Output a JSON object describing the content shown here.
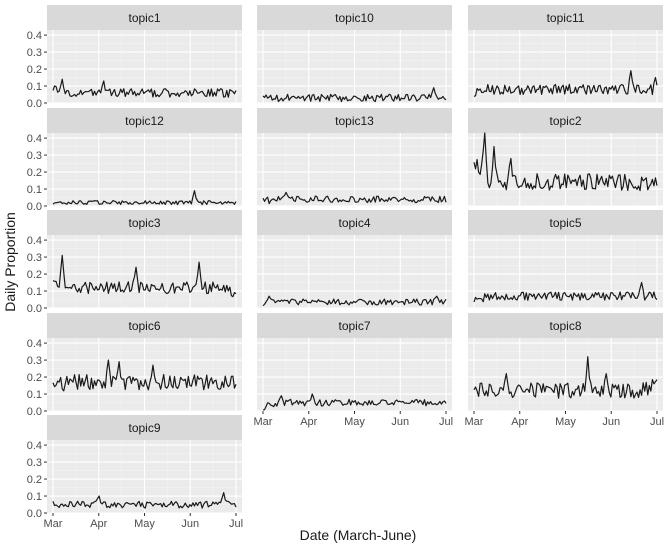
{
  "chart_data": {
    "type": "line",
    "facet": "wrap",
    "xlabel": "Date (March-June)",
    "ylabel": "Daily Proportion",
    "x_ticks": [
      "Mar",
      "Apr",
      "May",
      "Jun",
      "Jul"
    ],
    "y_ticks": [
      "0.0",
      "0.1",
      "0.2",
      "0.3",
      "0.4"
    ],
    "x_range": [
      "2020-03-01",
      "2020-07-01"
    ],
    "ylim": [
      0,
      0.43
    ],
    "grid": true,
    "background": "#ebebeb",
    "strip_color": "#d9d9d9",
    "line_color": "#1a1a1a",
    "panels": [
      {
        "name": "topic1",
        "y_start": 0.08,
        "y_end": 0.05,
        "mean": 0.06,
        "noise": 0.025,
        "peaks": [
          {
            "t": 0.05,
            "y": 0.14
          },
          {
            "t": 0.28,
            "y": 0.13
          }
        ]
      },
      {
        "name": "topic10",
        "y_start": 0.03,
        "y_end": 0.03,
        "mean": 0.03,
        "noise": 0.022,
        "peaks": [
          {
            "t": 0.93,
            "y": 0.09
          }
        ]
      },
      {
        "name": "topic11",
        "y_start": 0.06,
        "y_end": 0.08,
        "mean": 0.08,
        "noise": 0.03,
        "peaks": [
          {
            "t": 0.86,
            "y": 0.19
          },
          {
            "t": 0.99,
            "y": 0.15
          }
        ]
      },
      {
        "name": "topic12",
        "y_start": 0.01,
        "y_end": 0.02,
        "mean": 0.02,
        "noise": 0.012,
        "peaks": [
          {
            "t": 0.77,
            "y": 0.09
          }
        ]
      },
      {
        "name": "topic13",
        "y_start": 0.03,
        "y_end": 0.04,
        "mean": 0.04,
        "noise": 0.02,
        "peaks": [
          {
            "t": 0.13,
            "y": 0.08
          }
        ]
      },
      {
        "name": "topic2",
        "y_start": 0.28,
        "y_end": 0.14,
        "mean": 0.14,
        "noise": 0.05,
        "peaks": [
          {
            "t": 0.06,
            "y": 0.44
          },
          {
            "t": 0.11,
            "y": 0.35
          },
          {
            "t": 0.2,
            "y": 0.28
          }
        ]
      },
      {
        "name": "topic3",
        "y_start": 0.15,
        "y_end": 0.08,
        "mean": 0.12,
        "noise": 0.035,
        "peaks": [
          {
            "t": 0.05,
            "y": 0.31
          },
          {
            "t": 0.45,
            "y": 0.24
          },
          {
            "t": 0.8,
            "y": 0.27
          }
        ]
      },
      {
        "name": "topic4",
        "y_start": 0.03,
        "y_end": 0.04,
        "mean": 0.035,
        "noise": 0.018,
        "peaks": [
          {
            "t": 0.03,
            "y": 0.07
          },
          {
            "t": 0.95,
            "y": 0.07
          }
        ]
      },
      {
        "name": "topic5",
        "y_start": 0.04,
        "y_end": 0.07,
        "mean": 0.07,
        "noise": 0.025,
        "peaks": [
          {
            "t": 0.92,
            "y": 0.15
          }
        ]
      },
      {
        "name": "topic6",
        "y_start": 0.14,
        "y_end": 0.17,
        "mean": 0.17,
        "noise": 0.045,
        "peaks": [
          {
            "t": 0.3,
            "y": 0.3
          },
          {
            "t": 0.36,
            "y": 0.29
          },
          {
            "t": 0.55,
            "y": 0.27
          }
        ]
      },
      {
        "name": "topic7",
        "y_start": 0.02,
        "y_end": 0.04,
        "mean": 0.05,
        "noise": 0.02,
        "peaks": [
          {
            "t": 0.1,
            "y": 0.09
          },
          {
            "t": 0.27,
            "y": 0.1
          }
        ]
      },
      {
        "name": "topic8",
        "y_start": 0.12,
        "y_end": 0.15,
        "mean": 0.12,
        "noise": 0.045,
        "peaks": [
          {
            "t": 0.18,
            "y": 0.22
          },
          {
            "t": 0.62,
            "y": 0.32
          },
          {
            "t": 0.72,
            "y": 0.22
          }
        ]
      },
      {
        "name": "topic9",
        "y_start": 0.05,
        "y_end": 0.05,
        "mean": 0.05,
        "noise": 0.022,
        "peaks": [
          {
            "t": 0.25,
            "y": 0.1
          },
          {
            "t": 0.93,
            "y": 0.12
          }
        ]
      }
    ]
  }
}
